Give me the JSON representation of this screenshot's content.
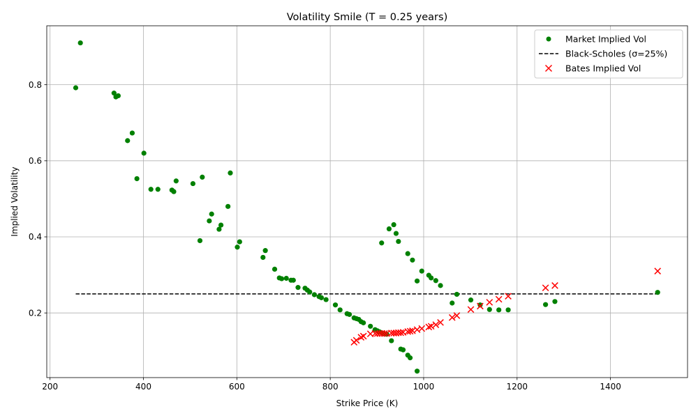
{
  "chart_data": {
    "type": "scatter",
    "title": "Volatility Smile (T = 0.25 years)",
    "xlabel": "Strike Price (K)",
    "ylabel": "Implied Volatility",
    "xlim": [
      193,
      1565
    ],
    "ylim": [
      0.03,
      0.955
    ],
    "xticks": [
      200,
      400,
      600,
      800,
      1000,
      1200,
      1400
    ],
    "yticks": [
      0.2,
      0.4,
      0.6,
      0.8
    ],
    "grid": true,
    "legend_position": "top-right",
    "series": [
      {
        "name": "Market Implied Vol",
        "kind": "scatter",
        "marker": "circle",
        "color": "#008000",
        "points": [
          [
            255,
            0.792
          ],
          [
            265,
            0.91
          ],
          [
            337,
            0.778
          ],
          [
            341,
            0.768
          ],
          [
            346,
            0.771
          ],
          [
            366,
            0.653
          ],
          [
            376,
            0.673
          ],
          [
            386,
            0.553
          ],
          [
            401,
            0.62
          ],
          [
            416,
            0.525
          ],
          [
            431,
            0.525
          ],
          [
            461,
            0.523
          ],
          [
            465,
            0.519
          ],
          [
            470,
            0.547
          ],
          [
            506,
            0.54
          ],
          [
            521,
            0.39
          ],
          [
            526,
            0.557
          ],
          [
            541,
            0.442
          ],
          [
            546,
            0.46
          ],
          [
            562,
            0.42
          ],
          [
            566,
            0.431
          ],
          [
            581,
            0.48
          ],
          [
            586,
            0.568
          ],
          [
            601,
            0.373
          ],
          [
            606,
            0.387
          ],
          [
            656,
            0.346
          ],
          [
            661,
            0.364
          ],
          [
            681,
            0.315
          ],
          [
            691,
            0.292
          ],
          [
            696,
            0.29
          ],
          [
            706,
            0.291
          ],
          [
            716,
            0.286
          ],
          [
            721,
            0.286
          ],
          [
            731,
            0.267
          ],
          [
            746,
            0.265
          ],
          [
            751,
            0.26
          ],
          [
            756,
            0.255
          ],
          [
            766,
            0.248
          ],
          [
            776,
            0.243
          ],
          [
            781,
            0.24
          ],
          [
            791,
            0.235
          ],
          [
            811,
            0.221
          ],
          [
            821,
            0.208
          ],
          [
            836,
            0.198
          ],
          [
            841,
            0.196
          ],
          [
            851,
            0.187
          ],
          [
            856,
            0.185
          ],
          [
            861,
            0.183
          ],
          [
            866,
            0.177
          ],
          [
            871,
            0.174
          ],
          [
            886,
            0.165
          ],
          [
            896,
            0.156
          ],
          [
            901,
            0.153
          ],
          [
            906,
            0.15
          ],
          [
            911,
            0.147
          ],
          [
            916,
            0.145
          ],
          [
            921,
            0.144
          ],
          [
            926,
            0.421
          ],
          [
            931,
            0.127
          ],
          [
            936,
            0.432
          ],
          [
            941,
            0.409
          ],
          [
            946,
            0.388
          ],
          [
            951,
            0.105
          ],
          [
            956,
            0.103
          ],
          [
            966,
            0.356
          ],
          [
            966,
            0.089
          ],
          [
            971,
            0.082
          ],
          [
            976,
            0.339
          ],
          [
            986,
            0.047
          ],
          [
            986,
            0.284
          ],
          [
            996,
            0.31
          ],
          [
            1011,
            0.299
          ],
          [
            1016,
            0.292
          ],
          [
            1026,
            0.285
          ],
          [
            1036,
            0.272
          ],
          [
            910,
            0.384
          ],
          [
            1061,
            0.226
          ],
          [
            1071,
            0.249
          ],
          [
            1101,
            0.234
          ],
          [
            1121,
            0.221
          ],
          [
            1141,
            0.209
          ],
          [
            1161,
            0.208
          ],
          [
            1181,
            0.208
          ],
          [
            1261,
            0.222
          ],
          [
            1281,
            0.23
          ],
          [
            1501,
            0.254
          ]
        ]
      },
      {
        "name": "Black-Scholes (σ=25%)",
        "kind": "line",
        "dash": "dashed",
        "color": "#000000",
        "points": [
          [
            255,
            0.25
          ],
          [
            1501,
            0.25
          ]
        ]
      },
      {
        "name": "Bates Implied Vol",
        "kind": "scatter",
        "marker": "x",
        "color": "#ff0000",
        "points": [
          [
            851,
            0.123
          ],
          [
            856,
            0.128
          ],
          [
            866,
            0.136
          ],
          [
            871,
            0.139
          ],
          [
            886,
            0.145
          ],
          [
            896,
            0.146
          ],
          [
            901,
            0.146
          ],
          [
            906,
            0.146
          ],
          [
            911,
            0.146
          ],
          [
            916,
            0.146
          ],
          [
            921,
            0.146
          ],
          [
            931,
            0.147
          ],
          [
            936,
            0.147
          ],
          [
            941,
            0.147
          ],
          [
            946,
            0.148
          ],
          [
            951,
            0.148
          ],
          [
            956,
            0.149
          ],
          [
            966,
            0.151
          ],
          [
            971,
            0.152
          ],
          [
            976,
            0.153
          ],
          [
            986,
            0.156
          ],
          [
            996,
            0.159
          ],
          [
            1011,
            0.163
          ],
          [
            1016,
            0.165
          ],
          [
            1026,
            0.169
          ],
          [
            1036,
            0.175
          ],
          [
            1061,
            0.188
          ],
          [
            1071,
            0.193
          ],
          [
            1101,
            0.209
          ],
          [
            1121,
            0.218
          ],
          [
            1141,
            0.228
          ],
          [
            1161,
            0.236
          ],
          [
            1181,
            0.244
          ],
          [
            1261,
            0.266
          ],
          [
            1281,
            0.272
          ],
          [
            1501,
            0.31
          ]
        ]
      }
    ]
  }
}
